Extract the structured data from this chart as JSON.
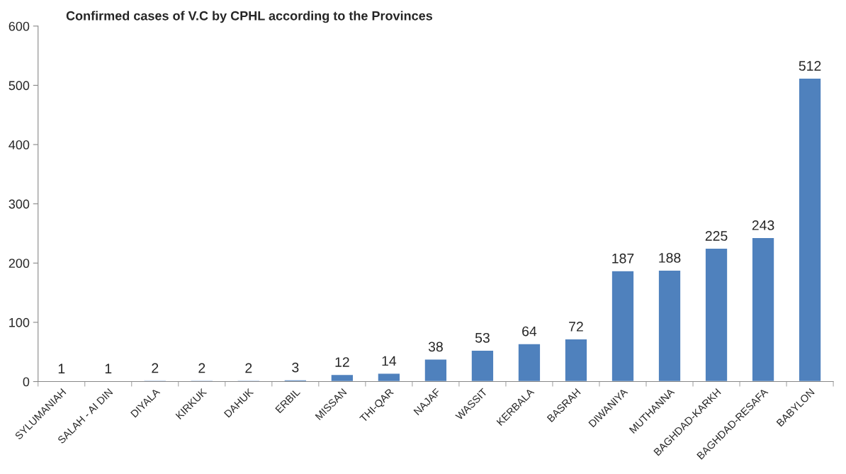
{
  "chart_data": {
    "type": "bar",
    "title": "Confirmed cases of V.C by CPHL according to the Provinces",
    "categories": [
      "SYLUMANIAH",
      "SALAH - AI DIN",
      "DIYALA",
      "KIRKUK",
      "DAHUK",
      "ERBIL",
      "MISSAN",
      "THI-QAR",
      "NAJAF",
      "WASSIT",
      "KERBALA",
      "BASRAH",
      "DIWANIYA",
      "MUTHANNA",
      "BAGHDAD-KARKH",
      "BAGHDAD-RESAFA",
      "BABYLON"
    ],
    "values": [
      1,
      1,
      2,
      2,
      2,
      3,
      12,
      14,
      38,
      53,
      64,
      72,
      187,
      188,
      225,
      243,
      512
    ],
    "color": "#4f81bd",
    "ylim": [
      0,
      600
    ],
    "yticks": [
      0,
      100,
      200,
      300,
      400,
      500,
      600
    ],
    "grid": false,
    "data_labels": true,
    "legend": false
  }
}
